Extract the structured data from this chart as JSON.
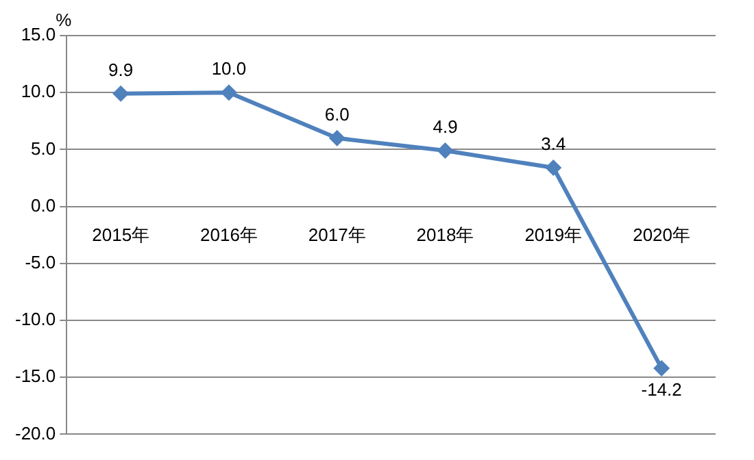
{
  "chart_data": {
    "type": "line",
    "ylabel": "%",
    "categories": [
      "2015年",
      "2016年",
      "2017年",
      "2018年",
      "2019年",
      "2020年"
    ],
    "series": [
      {
        "color": "#4f81bd",
        "values": [
          9.9,
          10.0,
          6.0,
          4.9,
          3.4,
          -14.2
        ],
        "value_labels": [
          "9.9",
          "10.0",
          "6.0",
          "4.9",
          "3.4",
          "-14.2"
        ]
      }
    ],
    "ylim": [
      -20,
      15
    ],
    "yticks": [
      {
        "value": -20,
        "label": "-20.0"
      },
      {
        "value": -15,
        "label": "-15.0"
      },
      {
        "value": -10,
        "label": "-10.0"
      },
      {
        "value": -5,
        "label": "-5.0"
      },
      {
        "value": 0,
        "label": "0.0"
      },
      {
        "value": 5,
        "label": "5.0"
      },
      {
        "value": 10,
        "label": "10.0"
      },
      {
        "value": 15,
        "label": "15.0"
      }
    ],
    "grid": "y",
    "marker": "diamond",
    "line_style": "solid",
    "legend": false
  }
}
